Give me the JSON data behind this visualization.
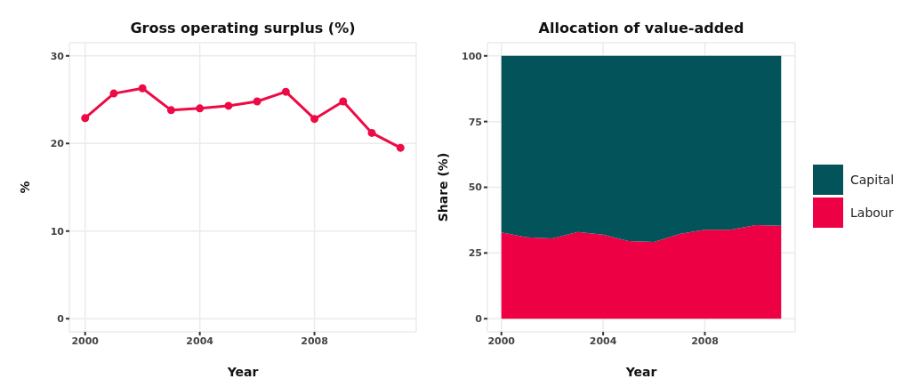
{
  "chart_data": [
    {
      "type": "line",
      "title": "Gross operating surplus (%)",
      "xlabel": "Year",
      "ylabel": "%",
      "x": [
        2000,
        2001,
        2002,
        2003,
        2004,
        2005,
        2006,
        2007,
        2008,
        2009,
        2010,
        2011
      ],
      "series": [
        {
          "color": "#ee0a45",
          "values": [
            22.9,
            25.7,
            26.3,
            23.8,
            24.0,
            24.3,
            24.8,
            25.9,
            22.8,
            24.8,
            21.2,
            19.5
          ]
        }
      ],
      "xlim": [
        1999.45,
        2011.55
      ],
      "xticks": [
        2000,
        2004,
        2008
      ],
      "ylim": [
        -1.5,
        31.5
      ],
      "yticks": [
        0,
        10,
        20,
        30
      ],
      "grid": true,
      "marker": "circle",
      "line_style": "solid"
    },
    {
      "type": "area",
      "title": "Allocation of value-added",
      "xlabel": "Year",
      "ylabel": "Share (%)",
      "x": [
        2000,
        2001,
        2002,
        2003,
        2004,
        2005,
        2006,
        2007,
        2008,
        2009,
        2010,
        2011
      ],
      "series": [
        {
          "name": "Labour",
          "color": "#ee0044",
          "values": [
            32.8,
            31.0,
            30.5,
            33.0,
            32.0,
            29.5,
            29.2,
            32.2,
            33.8,
            33.8,
            35.6,
            35.4
          ]
        },
        {
          "name": "Capital",
          "color": "#03535a",
          "values": [
            67.2,
            69.0,
            69.5,
            67.0,
            68.0,
            70.5,
            70.8,
            67.8,
            66.2,
            66.2,
            64.4,
            64.6
          ]
        }
      ],
      "stacked": true,
      "xlim": [
        1999.45,
        2011.55
      ],
      "xticks": [
        2000,
        2004,
        2008
      ],
      "ylim": [
        -5,
        105
      ],
      "yticks": [
        0,
        25,
        50,
        75,
        100
      ],
      "grid": true,
      "legend": "right"
    }
  ]
}
